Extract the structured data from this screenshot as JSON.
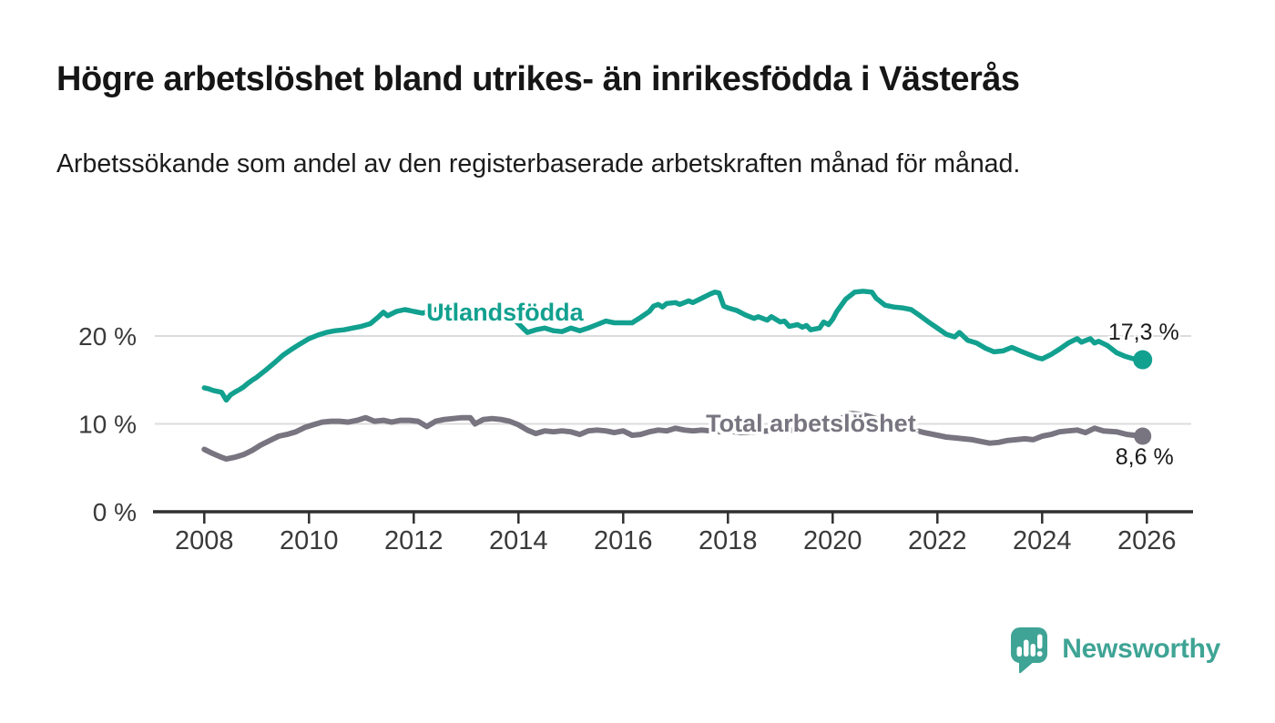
{
  "header": {
    "title": "Högre arbetslöshet bland utrikes- än inrikesfödda i Västerås",
    "subtitle": "Arbetssökande som andel av den registerbaserade arbetskraften månad för månad."
  },
  "chart_data": {
    "type": "line",
    "title": "Högre arbetslöshet bland utrikes- än inrikesfödda i Västerås",
    "xlabel": "",
    "ylabel": "",
    "x_range": [
      2007.0,
      2026.9
    ],
    "ylim": [
      0,
      27
    ],
    "grid": "horizontal",
    "legend_position": "inline-labels",
    "x_ticks": [
      2008,
      2010,
      2012,
      2014,
      2016,
      2018,
      2020,
      2022,
      2024,
      2026
    ],
    "y_ticks": [
      {
        "value": 0,
        "label": "0 %"
      },
      {
        "value": 10,
        "label": "10 %"
      },
      {
        "value": 20,
        "label": "20 %"
      }
    ],
    "colors": {
      "grid": "#dcdcdc",
      "axis": "#2f2f2f",
      "tick_label": "#3a3a3a"
    },
    "series": [
      {
        "name": "Utlandsfödda",
        "label": "Utlandsfödda",
        "color": "#12a08f",
        "end_value_label": "17,3 %",
        "end_value": 17.3,
        "dot_radius": 10.5,
        "label_anchor": {
          "year": 2012.24,
          "pct": 22.5
        },
        "points": [
          [
            2008.0,
            14.1
          ],
          [
            2008.08,
            14.0
          ],
          [
            2008.17,
            13.8
          ],
          [
            2008.25,
            13.7
          ],
          [
            2008.33,
            13.6
          ],
          [
            2008.42,
            12.7
          ],
          [
            2008.5,
            13.3
          ],
          [
            2008.58,
            13.6
          ],
          [
            2008.67,
            13.9
          ],
          [
            2008.75,
            14.2
          ],
          [
            2008.83,
            14.6
          ],
          [
            2008.92,
            15.0
          ],
          [
            2009.0,
            15.3
          ],
          [
            2009.17,
            16.1
          ],
          [
            2009.33,
            16.9
          ],
          [
            2009.5,
            17.8
          ],
          [
            2009.67,
            18.5
          ],
          [
            2009.83,
            19.1
          ],
          [
            2010.0,
            19.7
          ],
          [
            2010.17,
            20.1
          ],
          [
            2010.33,
            20.4
          ],
          [
            2010.5,
            20.6
          ],
          [
            2010.67,
            20.7
          ],
          [
            2010.83,
            20.9
          ],
          [
            2011.0,
            21.1
          ],
          [
            2011.17,
            21.4
          ],
          [
            2011.33,
            22.2
          ],
          [
            2011.42,
            22.7
          ],
          [
            2011.5,
            22.3
          ],
          [
            2011.67,
            22.8
          ],
          [
            2011.83,
            23.0
          ],
          [
            2011.92,
            22.9
          ],
          [
            2012.0,
            22.8
          ],
          [
            2012.17,
            22.6
          ],
          [
            2012.33,
            22.9
          ],
          [
            2012.5,
            23.1
          ],
          [
            2012.67,
            22.9
          ],
          [
            2012.83,
            23.0
          ],
          [
            2013.0,
            23.2
          ],
          [
            2013.17,
            22.9
          ],
          [
            2013.33,
            23.1
          ],
          [
            2013.5,
            23.0
          ],
          [
            2013.67,
            22.8
          ],
          [
            2013.83,
            22.3
          ],
          [
            2014.0,
            21.4
          ],
          [
            2014.17,
            20.4
          ],
          [
            2014.33,
            20.7
          ],
          [
            2014.5,
            20.9
          ],
          [
            2014.67,
            20.6
          ],
          [
            2014.83,
            20.5
          ],
          [
            2015.0,
            20.9
          ],
          [
            2015.17,
            20.6
          ],
          [
            2015.33,
            20.9
          ],
          [
            2015.5,
            21.3
          ],
          [
            2015.67,
            21.7
          ],
          [
            2015.83,
            21.5
          ],
          [
            2016.0,
            21.5
          ],
          [
            2016.17,
            21.5
          ],
          [
            2016.33,
            22.1
          ],
          [
            2016.5,
            22.8
          ],
          [
            2016.58,
            23.4
          ],
          [
            2016.67,
            23.6
          ],
          [
            2016.75,
            23.3
          ],
          [
            2016.83,
            23.7
          ],
          [
            2017.0,
            23.8
          ],
          [
            2017.08,
            23.6
          ],
          [
            2017.25,
            24.0
          ],
          [
            2017.33,
            23.8
          ],
          [
            2017.5,
            24.3
          ],
          [
            2017.67,
            24.8
          ],
          [
            2017.75,
            25.0
          ],
          [
            2017.83,
            24.9
          ],
          [
            2017.92,
            23.4
          ],
          [
            2018.0,
            23.2
          ],
          [
            2018.17,
            22.9
          ],
          [
            2018.33,
            22.4
          ],
          [
            2018.5,
            22.0
          ],
          [
            2018.58,
            22.2
          ],
          [
            2018.75,
            21.8
          ],
          [
            2018.83,
            22.2
          ],
          [
            2019.0,
            21.6
          ],
          [
            2019.08,
            21.7
          ],
          [
            2019.17,
            21.1
          ],
          [
            2019.33,
            21.3
          ],
          [
            2019.42,
            21.0
          ],
          [
            2019.5,
            21.2
          ],
          [
            2019.58,
            20.7
          ],
          [
            2019.75,
            20.9
          ],
          [
            2019.83,
            21.6
          ],
          [
            2019.92,
            21.3
          ],
          [
            2020.0,
            21.9
          ],
          [
            2020.08,
            22.8
          ],
          [
            2020.25,
            24.2
          ],
          [
            2020.42,
            25.0
          ],
          [
            2020.58,
            25.1
          ],
          [
            2020.75,
            25.0
          ],
          [
            2020.83,
            24.3
          ],
          [
            2021.0,
            23.5
          ],
          [
            2021.17,
            23.3
          ],
          [
            2021.33,
            23.2
          ],
          [
            2021.5,
            23.0
          ],
          [
            2021.67,
            22.3
          ],
          [
            2021.83,
            21.6
          ],
          [
            2022.0,
            20.9
          ],
          [
            2022.17,
            20.2
          ],
          [
            2022.33,
            19.9
          ],
          [
            2022.42,
            20.4
          ],
          [
            2022.58,
            19.5
          ],
          [
            2022.75,
            19.2
          ],
          [
            2022.92,
            18.6
          ],
          [
            2023.08,
            18.2
          ],
          [
            2023.25,
            18.3
          ],
          [
            2023.42,
            18.7
          ],
          [
            2023.58,
            18.3
          ],
          [
            2023.75,
            17.9
          ],
          [
            2023.92,
            17.5
          ],
          [
            2024.0,
            17.4
          ],
          [
            2024.17,
            17.9
          ],
          [
            2024.33,
            18.5
          ],
          [
            2024.5,
            19.2
          ],
          [
            2024.67,
            19.7
          ],
          [
            2024.75,
            19.3
          ],
          [
            2024.92,
            19.7
          ],
          [
            2025.0,
            19.2
          ],
          [
            2025.08,
            19.4
          ],
          [
            2025.25,
            18.9
          ],
          [
            2025.42,
            18.1
          ],
          [
            2025.58,
            17.7
          ],
          [
            2025.75,
            17.4
          ],
          [
            2025.92,
            17.3
          ]
        ]
      },
      {
        "name": "Total arbetslöshet",
        "label": "Total arbetslöshet",
        "color": "#787580",
        "end_value_label": "8,6 %",
        "end_value": 8.6,
        "dot_radius": 9.5,
        "label_anchor": {
          "year": 2017.58,
          "pct": 9.85
        },
        "points": [
          [
            2008.0,
            7.1
          ],
          [
            2008.17,
            6.6
          ],
          [
            2008.33,
            6.2
          ],
          [
            2008.42,
            6.0
          ],
          [
            2008.58,
            6.2
          ],
          [
            2008.75,
            6.5
          ],
          [
            2008.92,
            7.0
          ],
          [
            2009.08,
            7.6
          ],
          [
            2009.25,
            8.1
          ],
          [
            2009.42,
            8.6
          ],
          [
            2009.58,
            8.8
          ],
          [
            2009.75,
            9.1
          ],
          [
            2009.92,
            9.6
          ],
          [
            2010.08,
            9.9
          ],
          [
            2010.25,
            10.2
          ],
          [
            2010.42,
            10.3
          ],
          [
            2010.58,
            10.3
          ],
          [
            2010.75,
            10.2
          ],
          [
            2010.92,
            10.4
          ],
          [
            2011.08,
            10.7
          ],
          [
            2011.25,
            10.3
          ],
          [
            2011.42,
            10.4
          ],
          [
            2011.58,
            10.2
          ],
          [
            2011.75,
            10.4
          ],
          [
            2011.92,
            10.4
          ],
          [
            2012.08,
            10.3
          ],
          [
            2012.25,
            9.7
          ],
          [
            2012.42,
            10.3
          ],
          [
            2012.58,
            10.5
          ],
          [
            2012.75,
            10.6
          ],
          [
            2012.92,
            10.7
          ],
          [
            2013.08,
            10.7
          ],
          [
            2013.17,
            10.0
          ],
          [
            2013.33,
            10.5
          ],
          [
            2013.5,
            10.6
          ],
          [
            2013.67,
            10.5
          ],
          [
            2013.83,
            10.3
          ],
          [
            2014.0,
            9.9
          ],
          [
            2014.17,
            9.3
          ],
          [
            2014.33,
            8.9
          ],
          [
            2014.5,
            9.2
          ],
          [
            2014.67,
            9.1
          ],
          [
            2014.83,
            9.2
          ],
          [
            2015.0,
            9.1
          ],
          [
            2015.17,
            8.8
          ],
          [
            2015.33,
            9.2
          ],
          [
            2015.5,
            9.3
          ],
          [
            2015.67,
            9.2
          ],
          [
            2015.83,
            9.0
          ],
          [
            2016.0,
            9.2
          ],
          [
            2016.17,
            8.7
          ],
          [
            2016.33,
            8.8
          ],
          [
            2016.5,
            9.1
          ],
          [
            2016.67,
            9.3
          ],
          [
            2016.83,
            9.2
          ],
          [
            2017.0,
            9.5
          ],
          [
            2017.17,
            9.3
          ],
          [
            2017.33,
            9.2
          ],
          [
            2017.5,
            9.3
          ],
          [
            2017.67,
            9.2
          ],
          [
            2017.83,
            9.1
          ],
          [
            2018.0,
            9.2
          ],
          [
            2018.25,
            9.0
          ],
          [
            2018.5,
            9.1
          ],
          [
            2018.75,
            9.2
          ],
          [
            2019.0,
            9.2
          ],
          [
            2019.25,
            9.3
          ],
          [
            2019.5,
            9.4
          ],
          [
            2019.75,
            9.5
          ],
          [
            2020.0,
            9.8
          ],
          [
            2020.17,
            10.6
          ],
          [
            2020.33,
            11.2
          ],
          [
            2020.5,
            11.1
          ],
          [
            2020.67,
            10.9
          ],
          [
            2020.83,
            10.6
          ],
          [
            2021.0,
            10.3
          ],
          [
            2021.25,
            9.9
          ],
          [
            2021.5,
            9.4
          ],
          [
            2021.75,
            9.0
          ],
          [
            2022.0,
            8.7
          ],
          [
            2022.17,
            8.5
          ],
          [
            2022.33,
            8.4
          ],
          [
            2022.5,
            8.3
          ],
          [
            2022.67,
            8.2
          ],
          [
            2022.83,
            8.0
          ],
          [
            2023.0,
            7.8
          ],
          [
            2023.17,
            7.9
          ],
          [
            2023.33,
            8.1
          ],
          [
            2023.5,
            8.2
          ],
          [
            2023.67,
            8.3
          ],
          [
            2023.83,
            8.2
          ],
          [
            2024.0,
            8.6
          ],
          [
            2024.17,
            8.8
          ],
          [
            2024.33,
            9.1
          ],
          [
            2024.5,
            9.2
          ],
          [
            2024.67,
            9.3
          ],
          [
            2024.83,
            9.0
          ],
          [
            2025.0,
            9.5
          ],
          [
            2025.17,
            9.2
          ],
          [
            2025.42,
            9.1
          ],
          [
            2025.62,
            8.8
          ],
          [
            2025.92,
            8.6
          ]
        ]
      }
    ]
  },
  "logo": {
    "text": "Newsworthy",
    "color": "#3fa495"
  }
}
